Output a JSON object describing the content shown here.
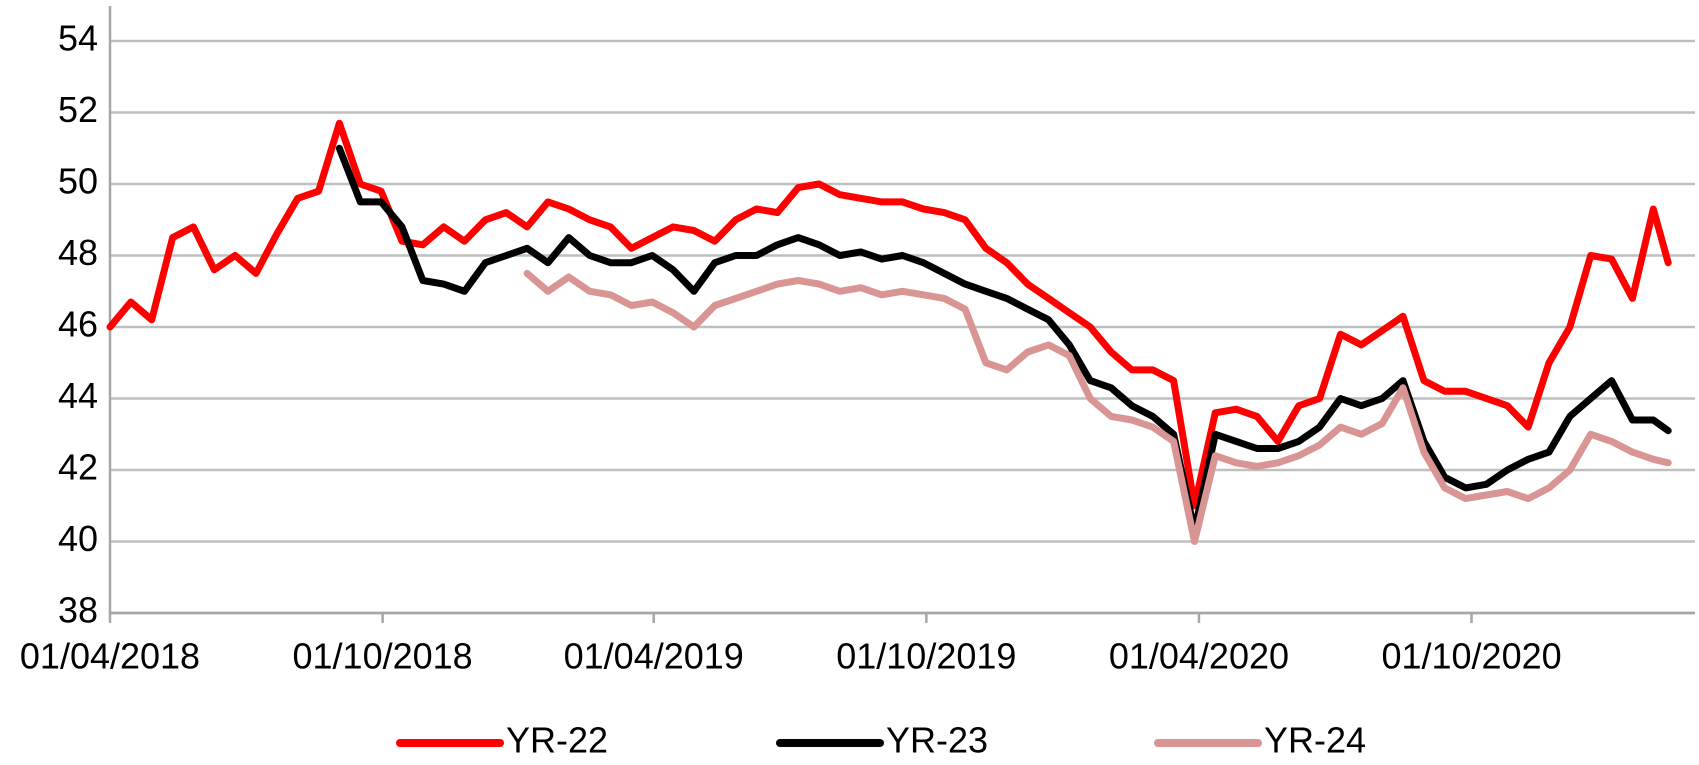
{
  "chart_data": {
    "type": "line",
    "x": [
      "01/04/2018",
      "15/04/2018",
      "29/04/2018",
      "13/05/2018",
      "27/05/2018",
      "10/06/2018",
      "24/06/2018",
      "08/07/2018",
      "22/07/2018",
      "05/08/2018",
      "19/08/2018",
      "02/09/2018",
      "16/09/2018",
      "30/09/2018",
      "14/10/2018",
      "28/10/2018",
      "11/11/2018",
      "25/11/2018",
      "09/12/2018",
      "23/12/2018",
      "06/01/2019",
      "20/01/2019",
      "03/02/2019",
      "17/02/2019",
      "03/03/2019",
      "17/03/2019",
      "31/03/2019",
      "14/04/2019",
      "28/04/2019",
      "12/05/2019",
      "26/05/2019",
      "09/06/2019",
      "23/06/2019",
      "07/07/2019",
      "21/07/2019",
      "04/08/2019",
      "18/08/2019",
      "01/09/2019",
      "15/09/2019",
      "29/09/2019",
      "13/10/2019",
      "27/10/2019",
      "10/11/2019",
      "24/11/2019",
      "08/12/2019",
      "22/12/2019",
      "05/01/2020",
      "19/01/2020",
      "02/02/2020",
      "16/02/2020",
      "01/03/2020",
      "15/03/2020",
      "29/03/2020",
      "12/04/2020",
      "26/04/2020",
      "10/05/2020",
      "24/05/2020",
      "07/06/2020",
      "21/06/2020",
      "05/07/2020",
      "19/07/2020",
      "02/08/2020",
      "16/08/2020",
      "30/08/2020",
      "13/09/2020",
      "27/09/2020",
      "11/10/2020",
      "25/10/2020",
      "08/11/2020",
      "22/11/2020",
      "06/12/2020",
      "20/12/2020",
      "03/01/2021",
      "17/01/2021",
      "31/01/2021",
      "10/02/2021"
    ],
    "series": [
      {
        "name": "YR-22",
        "color": "#ff0000",
        "values": [
          46.0,
          46.7,
          46.2,
          48.5,
          48.8,
          47.6,
          48.0,
          47.5,
          48.6,
          49.6,
          49.8,
          51.7,
          50.0,
          49.8,
          48.4,
          48.3,
          48.8,
          48.4,
          49.0,
          49.2,
          48.8,
          49.5,
          49.3,
          49.0,
          48.8,
          48.2,
          48.5,
          48.8,
          48.7,
          48.4,
          49.0,
          49.3,
          49.2,
          49.9,
          50.0,
          49.7,
          49.6,
          49.5,
          49.5,
          49.3,
          49.2,
          49.0,
          48.2,
          47.8,
          47.2,
          46.8,
          46.4,
          46.0,
          45.3,
          44.8,
          44.8,
          44.5,
          41.0,
          43.6,
          43.7,
          43.5,
          42.8,
          43.8,
          44.0,
          45.8,
          45.5,
          45.9,
          46.3,
          44.5,
          44.2,
          44.2,
          44.0,
          43.8,
          43.2,
          45.0,
          46.0,
          48.0,
          47.9,
          46.8,
          49.3,
          47.8
        ]
      },
      {
        "name": "YR-23",
        "color": "#000000",
        "values": [
          null,
          null,
          null,
          null,
          null,
          null,
          null,
          null,
          null,
          null,
          null,
          51.0,
          49.5,
          49.5,
          48.8,
          47.3,
          47.2,
          47.0,
          47.8,
          48.0,
          48.2,
          47.8,
          48.5,
          48.0,
          47.8,
          47.8,
          48.0,
          47.6,
          47.0,
          47.8,
          48.0,
          48.0,
          48.3,
          48.5,
          48.3,
          48.0,
          48.1,
          47.9,
          48.0,
          47.8,
          47.5,
          47.2,
          47.0,
          46.8,
          46.5,
          46.2,
          45.5,
          44.5,
          44.3,
          43.8,
          43.5,
          43.0,
          40.3,
          43.0,
          42.8,
          42.6,
          42.6,
          42.8,
          43.2,
          44.0,
          43.8,
          44.0,
          44.5,
          42.8,
          41.8,
          41.5,
          41.6,
          42.0,
          42.3,
          42.5,
          43.5,
          44.0,
          44.5,
          43.4,
          43.4,
          43.1
        ]
      },
      {
        "name": "YR-24",
        "color": "#d99594",
        "values": [
          null,
          null,
          null,
          null,
          null,
          null,
          null,
          null,
          null,
          null,
          null,
          null,
          null,
          null,
          null,
          null,
          null,
          null,
          null,
          null,
          47.5,
          47.0,
          47.4,
          47.0,
          46.9,
          46.6,
          46.7,
          46.4,
          46.0,
          46.6,
          46.8,
          47.0,
          47.2,
          47.3,
          47.2,
          47.0,
          47.1,
          46.9,
          47.0,
          46.9,
          46.8,
          46.5,
          45.0,
          44.8,
          45.3,
          45.5,
          45.2,
          44.0,
          43.5,
          43.4,
          43.2,
          42.8,
          40.0,
          42.4,
          42.2,
          42.1,
          42.2,
          42.4,
          42.7,
          43.2,
          43.0,
          43.3,
          44.3,
          42.5,
          41.5,
          41.2,
          41.3,
          41.4,
          41.2,
          41.5,
          42.0,
          43.0,
          42.8,
          42.5,
          42.3,
          42.2
        ]
      }
    ],
    "xlim": [
      "01/04/2018",
      "28/02/2021"
    ],
    "xticks": [
      "01/04/2018",
      "01/10/2018",
      "01/04/2019",
      "01/10/2019",
      "01/04/2020",
      "01/10/2020"
    ],
    "ylim": [
      38,
      54
    ],
    "yticks": [
      38,
      40,
      42,
      44,
      46,
      48,
      50,
      52,
      54
    ],
    "grid": true,
    "legend": "bottom"
  }
}
